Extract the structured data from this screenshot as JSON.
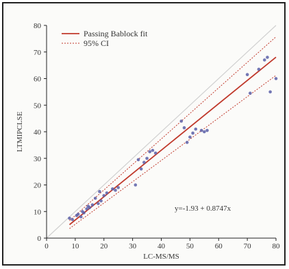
{
  "chart_data": {
    "type": "scatter",
    "xlabel": "LC-MS/MS",
    "ylabel": "LTMIPCLSE",
    "xlim": [
      0,
      80
    ],
    "ylim": [
      0,
      80
    ],
    "xticks": [
      0,
      10,
      20,
      30,
      40,
      50,
      60,
      70,
      80
    ],
    "yticks": [
      0,
      10,
      20,
      30,
      40,
      50,
      60,
      70,
      80
    ],
    "legend": {
      "placement": "top-left",
      "items": [
        {
          "label": "Passing Bablock fit",
          "style": "solid",
          "color": "#c0392b"
        },
        {
          "label": "95% CI",
          "style": "dotted",
          "color": "#c0392b"
        }
      ]
    },
    "equation": "y=-1.93 + 0.8747x",
    "fit": {
      "intercept": -1.93,
      "slope": 0.8747,
      "x_range": [
        8,
        80
      ]
    },
    "ci_lower": {
      "intercept": -2.8,
      "slope": 0.8,
      "x_range": [
        8,
        80
      ]
    },
    "ci_upper": {
      "intercept": -1.1,
      "slope": 0.96,
      "x_range": [
        8,
        80
      ]
    },
    "identity_line": {
      "x_range": [
        0,
        80
      ],
      "color": "#d0d0d0"
    },
    "points": [
      {
        "x": 8,
        "y": 7.5
      },
      {
        "x": 9,
        "y": 7
      },
      {
        "x": 10.5,
        "y": 8.5
      },
      {
        "x": 11,
        "y": 9
      },
      {
        "x": 12,
        "y": 8
      },
      {
        "x": 12.5,
        "y": 10
      },
      {
        "x": 13,
        "y": 9.5
      },
      {
        "x": 14,
        "y": 11
      },
      {
        "x": 14.5,
        "y": 12
      },
      {
        "x": 15,
        "y": 11.5
      },
      {
        "x": 16,
        "y": 12.5
      },
      {
        "x": 17,
        "y": 15
      },
      {
        "x": 18,
        "y": 13
      },
      {
        "x": 18.5,
        "y": 17.5
      },
      {
        "x": 19,
        "y": 14
      },
      {
        "x": 20,
        "y": 16
      },
      {
        "x": 21,
        "y": 17
      },
      {
        "x": 23,
        "y": 18.5
      },
      {
        "x": 24,
        "y": 18
      },
      {
        "x": 25,
        "y": 19
      },
      {
        "x": 31,
        "y": 20
      },
      {
        "x": 32,
        "y": 29.5
      },
      {
        "x": 33,
        "y": 26
      },
      {
        "x": 34,
        "y": 28.5
      },
      {
        "x": 35,
        "y": 30
      },
      {
        "x": 36,
        "y": 32.5
      },
      {
        "x": 37,
        "y": 33
      },
      {
        "x": 38,
        "y": 32
      },
      {
        "x": 47,
        "y": 44
      },
      {
        "x": 48,
        "y": 41.5
      },
      {
        "x": 49,
        "y": 36
      },
      {
        "x": 50,
        "y": 38
      },
      {
        "x": 51,
        "y": 39.5
      },
      {
        "x": 52,
        "y": 41
      },
      {
        "x": 54,
        "y": 40.5
      },
      {
        "x": 55,
        "y": 40
      },
      {
        "x": 56,
        "y": 40.5
      },
      {
        "x": 70,
        "y": 61.5
      },
      {
        "x": 71,
        "y": 54.5
      },
      {
        "x": 74,
        "y": 63.5
      },
      {
        "x": 76,
        "y": 67
      },
      {
        "x": 77,
        "y": 68
      },
      {
        "x": 78,
        "y": 55
      },
      {
        "x": 80,
        "y": 60
      }
    ],
    "colors": {
      "points": "#5b5fa8",
      "fit": "#c0392b",
      "ci": "#c0392b",
      "axis": "#222222"
    }
  }
}
